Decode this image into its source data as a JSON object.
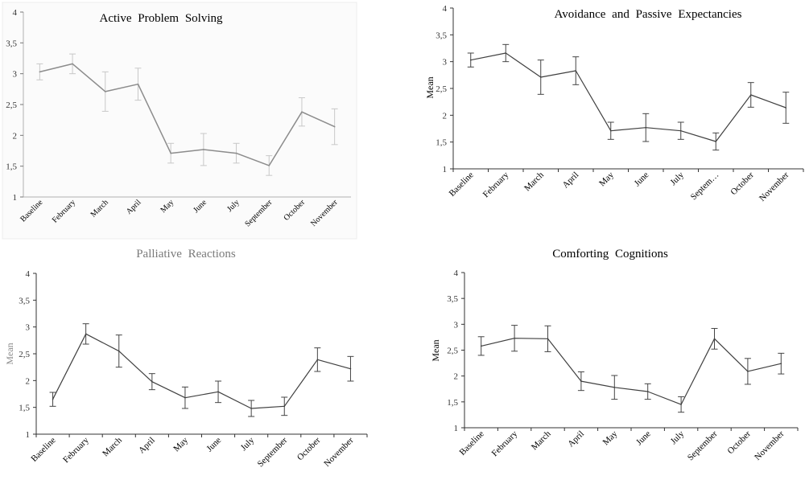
{
  "chart_data": [
    {
      "type": "line",
      "title": "Active Problem Solving",
      "xlabel": "",
      "ylabel": "",
      "ylim": [
        1,
        4
      ],
      "yticks": [
        "1",
        "1,5",
        "2",
        "2,5",
        "3",
        "3,5",
        "4"
      ],
      "categories": [
        "Baseline",
        "February",
        "March",
        "April",
        "May",
        "June",
        "July",
        "September",
        "October",
        "November"
      ],
      "values": [
        3.03,
        3.16,
        2.71,
        2.83,
        1.71,
        1.77,
        1.71,
        1.51,
        2.38,
        2.14
      ],
      "errors": [
        0.13,
        0.16,
        0.32,
        0.26,
        0.16,
        0.26,
        0.16,
        0.16,
        0.23,
        0.29
      ],
      "grid": false,
      "color": "#8c8c8c"
    },
    {
      "type": "line",
      "title": "Avoidance and Passive Expectancies",
      "xlabel": "",
      "ylabel": "Mean",
      "ylim": [
        1,
        4
      ],
      "yticks": [
        "1",
        "1,5",
        "2",
        "2,5",
        "3",
        "3,5",
        "4"
      ],
      "categories": [
        "Baseline",
        "February",
        "March",
        "April",
        "May",
        "June",
        "July",
        "Septem…",
        "October",
        "November"
      ],
      "values": [
        3.03,
        3.16,
        2.71,
        2.83,
        1.71,
        1.77,
        1.71,
        1.51,
        2.38,
        2.14
      ],
      "errors": [
        0.13,
        0.16,
        0.32,
        0.26,
        0.16,
        0.26,
        0.16,
        0.16,
        0.23,
        0.29
      ],
      "grid": false,
      "color": "#404040"
    },
    {
      "type": "line",
      "title": "Palliative Reactions",
      "xlabel": "",
      "ylabel": "Mean",
      "ylim": [
        1,
        4
      ],
      "yticks": [
        "1",
        "1,5",
        "2",
        "2,5",
        "3",
        "3,5",
        "4"
      ],
      "categories": [
        "Baseline",
        "February",
        "March",
        "April",
        "May",
        "June",
        "July",
        "September",
        "October",
        "November"
      ],
      "values": [
        1.65,
        2.87,
        2.55,
        1.98,
        1.68,
        1.79,
        1.48,
        1.52,
        2.39,
        2.22
      ],
      "errors": [
        0.13,
        0.19,
        0.3,
        0.15,
        0.2,
        0.2,
        0.15,
        0.17,
        0.22,
        0.23
      ],
      "grid": false,
      "color": "#404040"
    },
    {
      "type": "line",
      "title": "Comforting Cognitions",
      "xlabel": "",
      "ylabel": "Mean",
      "ylim": [
        1,
        4
      ],
      "yticks": [
        "1",
        "1,5",
        "2",
        "2,5",
        "3",
        "3,5",
        "4"
      ],
      "categories": [
        "Baseline",
        "February",
        "March",
        "April",
        "May",
        "June",
        "July",
        "September",
        "October",
        "November"
      ],
      "values": [
        2.58,
        2.73,
        2.72,
        1.9,
        1.78,
        1.7,
        1.45,
        2.72,
        2.09,
        2.24
      ],
      "errors": [
        0.18,
        0.25,
        0.25,
        0.18,
        0.23,
        0.15,
        0.15,
        0.2,
        0.25,
        0.2
      ],
      "grid": false,
      "color": "#404040"
    }
  ]
}
